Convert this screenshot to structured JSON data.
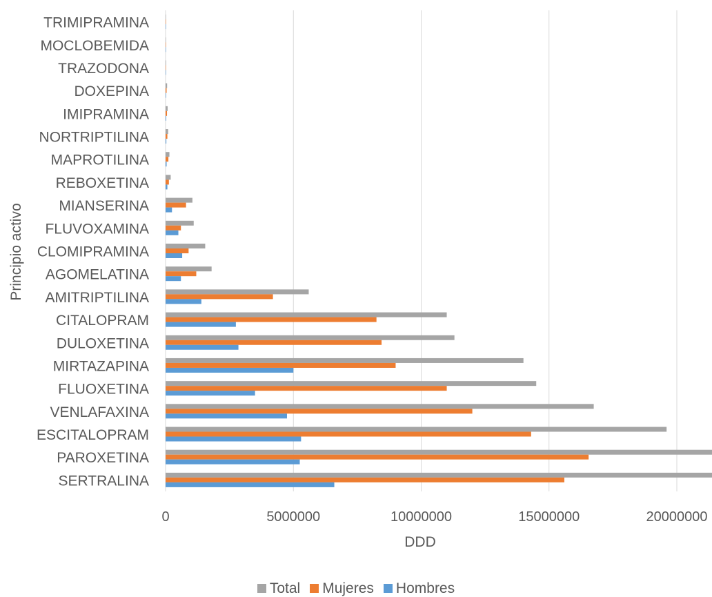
{
  "chart_data": {
    "type": "bar",
    "orientation": "horizontal",
    "title": "",
    "xlabel": "DDD",
    "ylabel": "Principio activo",
    "xlim": [
      0,
      25000000
    ],
    "xticks": [
      "0",
      "5000000",
      "10000000",
      "15000000",
      "20000000",
      "25000000"
    ],
    "grid": true,
    "legend_position": "bottom",
    "categories": [
      "SERTRALINA",
      "PAROXETINA",
      "ESCITALOPRAM",
      "VENLAFAXINA",
      "FLUOXETINA",
      "MIRTAZAPINA",
      "DULOXETINA",
      "CITALOPRAM",
      "AMITRIPTILINA",
      "AGOMELATINA",
      "CLOMIPRAMINA",
      "FLUVOXAMINA",
      "MIANSERINA",
      "REBOXETINA",
      "MAPROTILINA",
      "NORTRIPTILINA",
      "IMIPRAMINA",
      "DOXEPINA",
      "TRAZODONA",
      "MOCLOBEMIDA",
      "TRIMIPRAMINA"
    ],
    "series": [
      {
        "name": "Total",
        "color": "#a5a5a5",
        "values": [
          22200000,
          21800000,
          19600000,
          16750000,
          14500000,
          14000000,
          11300000,
          11000000,
          5600000,
          1800000,
          1550000,
          1100000,
          1050000,
          200000,
          150000,
          100000,
          80000,
          60000,
          20000,
          10000,
          5000
        ]
      },
      {
        "name": "Mujeres",
        "color": "#ed7d31",
        "values": [
          15600000,
          16550000,
          14300000,
          12000000,
          11000000,
          9000000,
          8450000,
          8250000,
          4200000,
          1200000,
          900000,
          600000,
          800000,
          130000,
          110000,
          70000,
          55000,
          40000,
          15000,
          7000,
          3000
        ]
      },
      {
        "name": "Hombres",
        "color": "#5b9bd5",
        "values": [
          6600000,
          5250000,
          5300000,
          4750000,
          3500000,
          5000000,
          2850000,
          2750000,
          1400000,
          600000,
          650000,
          500000,
          250000,
          70000,
          40000,
          30000,
          25000,
          20000,
          5000,
          3000,
          2000
        ]
      }
    ]
  }
}
